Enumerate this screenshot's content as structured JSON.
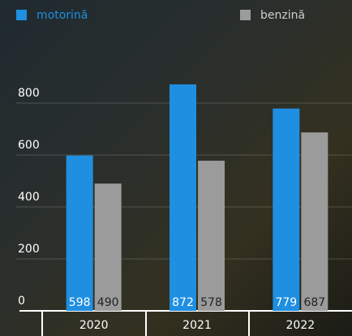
{
  "chart_data": {
    "type": "bar",
    "categories": [
      "2020",
      "2021",
      "2022"
    ],
    "series": [
      {
        "name": "motorină",
        "color": "#1e8fe1",
        "values": [
          598,
          872,
          779
        ]
      },
      {
        "name": "benzină",
        "color": "#9b9b9b",
        "values": [
          490,
          578,
          687
        ]
      }
    ],
    "ylim": [
      0,
      900
    ],
    "yticks": [
      0,
      200,
      400,
      600,
      800
    ],
    "grid": true
  }
}
